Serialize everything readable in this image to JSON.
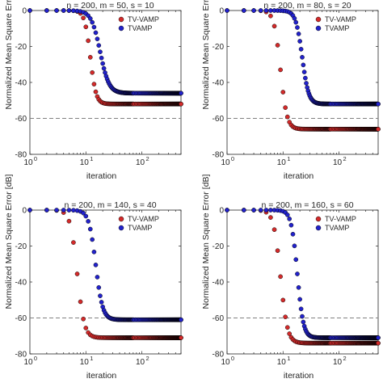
{
  "chart_data": [
    {
      "type": "scatter",
      "title": "n = 200, m = 50, s = 10",
      "xlabel": "iteration",
      "ylabel": "Normalized Mean Square Error [dB]",
      "xscale": "log",
      "xlim": [
        1,
        500
      ],
      "ylim": [
        -80,
        0
      ],
      "xticks": [
        1,
        10,
        100
      ],
      "xtick_labels": [
        "10",
        "10",
        "10"
      ],
      "xtick_exponents": [
        "0",
        "1",
        "2"
      ],
      "yticks": [
        0,
        -20,
        -40,
        -60,
        -80
      ],
      "ytick_labels": [
        "0",
        "-20",
        "-40",
        "-60",
        "-80"
      ],
      "reference_line": -60,
      "legend_position": "top-right",
      "series": [
        {
          "name": "TV-VAMP",
          "color": "#d42a2a",
          "start": 0,
          "floor": -52,
          "knee": 12,
          "slope": 85
        },
        {
          "name": "TVAMP",
          "color": "#2222cc",
          "start": 0,
          "floor": -46,
          "knee": 18,
          "slope": 55
        }
      ]
    },
    {
      "type": "scatter",
      "title": "n = 200, m = 80, s = 20",
      "xlabel": "iteration",
      "ylabel": "Normalized Mean Square Error [dB]",
      "xscale": "log",
      "xlim": [
        1,
        500
      ],
      "ylim": [
        -80,
        0
      ],
      "xticks": [
        1,
        10,
        100
      ],
      "xtick_labels": [
        "10",
        "10",
        "10"
      ],
      "xtick_exponents": [
        "0",
        "1",
        "2"
      ],
      "yticks": [
        0,
        -20,
        -40,
        -60,
        -80
      ],
      "ytick_labels": [
        "0",
        "-20",
        "-40",
        "-60",
        "-80"
      ],
      "reference_line": -60,
      "legend_position": "top-right",
      "series": [
        {
          "name": "TV-VAMP",
          "color": "#d42a2a",
          "start": 0,
          "floor": -66,
          "knee": 9,
          "slope": 75
        },
        {
          "name": "TVAMP",
          "color": "#2222cc",
          "start": 0,
          "floor": -52,
          "knee": 22,
          "slope": 75
        }
      ]
    },
    {
      "type": "scatter",
      "title": "n = 200, m = 140, s = 40",
      "xlabel": "iteration",
      "ylabel": "Normalized Mean Square Error [dB]",
      "xscale": "log",
      "xlim": [
        1,
        500
      ],
      "ylim": [
        -80,
        0
      ],
      "xticks": [
        1,
        10,
        100
      ],
      "xtick_labels": [
        "10",
        "10",
        "10"
      ],
      "xtick_exponents": [
        "0",
        "1",
        "2"
      ],
      "yticks": [
        0,
        -20,
        -40,
        -60,
        -80
      ],
      "ytick_labels": [
        "0",
        "-20",
        "-40",
        "-60",
        "-80"
      ],
      "reference_line": -60,
      "legend_position": "top-right",
      "series": [
        {
          "name": "TV-VAMP",
          "color": "#d42a2a",
          "start": 0,
          "floor": -71,
          "knee": 7,
          "slope": 70
        },
        {
          "name": "TVAMP",
          "color": "#2222cc",
          "start": 0,
          "floor": -61,
          "knee": 15,
          "slope": 70
        }
      ]
    },
    {
      "type": "scatter",
      "title": "n = 200, m = 160, s = 60",
      "xlabel": "iteration",
      "ylabel": "Normalized Mean Square Error [dB]",
      "xscale": "log",
      "xlim": [
        1,
        500
      ],
      "ylim": [
        -80,
        0
      ],
      "xticks": [
        1,
        10,
        100
      ],
      "xtick_labels": [
        "10",
        "10",
        "10"
      ],
      "xtick_exponents": [
        "0",
        "1",
        "2"
      ],
      "yticks": [
        0,
        -20,
        -40,
        -60,
        -80
      ],
      "ytick_labels": [
        "0",
        "-20",
        "-40",
        "-60",
        "-80"
      ],
      "reference_line": -60,
      "legend_position": "top-right",
      "series": [
        {
          "name": "TV-VAMP",
          "color": "#d42a2a",
          "start": 0,
          "floor": -74,
          "knee": 9,
          "slope": 70
        },
        {
          "name": "TVAMP",
          "color": "#2222cc",
          "start": 0,
          "floor": -71,
          "knee": 18,
          "slope": 80
        }
      ]
    }
  ]
}
